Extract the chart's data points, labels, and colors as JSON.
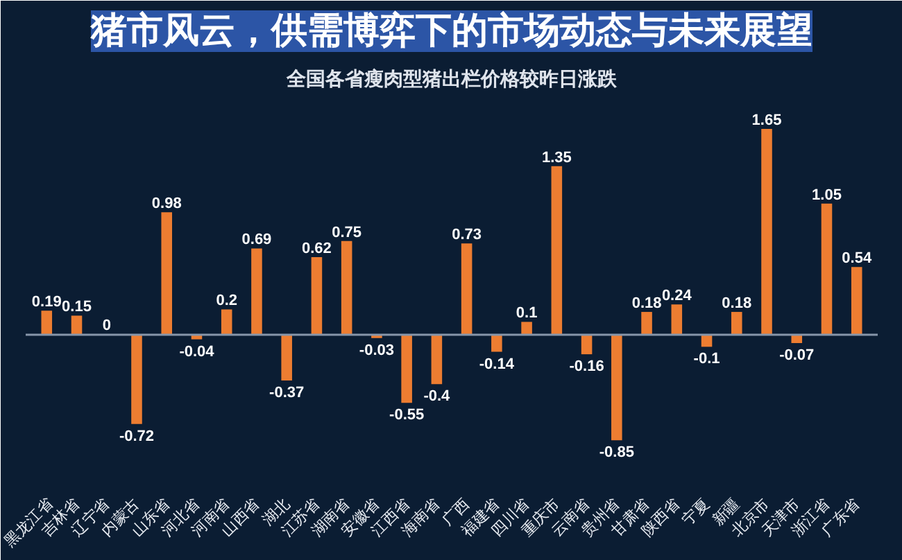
{
  "chart_data": {
    "type": "bar",
    "title": "猪市风云，供需博弈下的市场动态与未来展望",
    "subtitle": "全国各省瘦肉型猪出栏价格较昨日涨跌",
    "categories": [
      "黑龙江省",
      "吉林省",
      "辽宁省",
      "内蒙古",
      "山东省",
      "河北省",
      "河南省",
      "山西省",
      "湖北",
      "江苏省",
      "湖南省",
      "安徽省",
      "江西省",
      "海南省",
      "广西",
      "福建省",
      "四川省",
      "重庆市",
      "云南省",
      "贵州省",
      "甘肃省",
      "陕西省",
      "宁夏",
      "新疆",
      "北京市",
      "天津市",
      "浙江省",
      "广东省"
    ],
    "values": [
      0.19,
      0.15,
      0,
      -0.72,
      0.98,
      -0.04,
      0.2,
      0.69,
      -0.37,
      0.62,
      0.75,
      -0.03,
      -0.55,
      -0.4,
      0.73,
      -0.14,
      0.1,
      1.35,
      -0.16,
      -0.85,
      0.18,
      0.24,
      -0.1,
      0.18,
      1.65,
      -0.07,
      1.05,
      0.54
    ],
    "color": "#ed7d31",
    "data_labels": true
  }
}
